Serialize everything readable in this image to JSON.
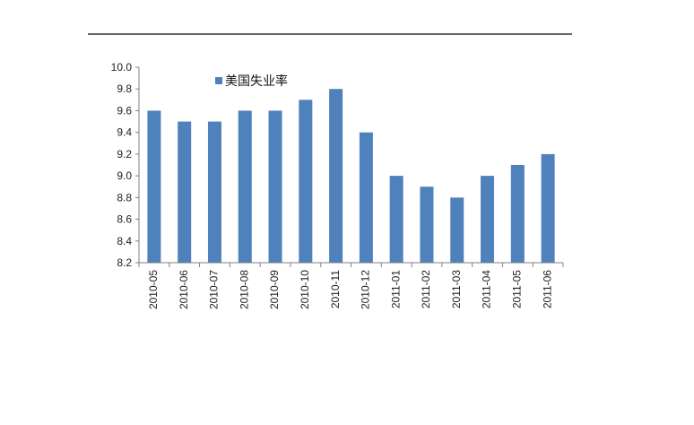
{
  "chart_data": {
    "type": "bar",
    "categories": [
      "2010-05",
      "2010-06",
      "2010-07",
      "2010-08",
      "2010-09",
      "2010-10",
      "2010-11",
      "2010-12",
      "2011-01",
      "2011-02",
      "2011-03",
      "2011-04",
      "2011-05",
      "2011-06"
    ],
    "series": [
      {
        "name": "美国失业率",
        "values": [
          9.6,
          9.5,
          9.5,
          9.6,
          9.6,
          9.7,
          9.8,
          9.4,
          9.0,
          8.9,
          8.8,
          9.0,
          9.1,
          9.2
        ]
      }
    ],
    "yticks": [
      "8.2",
      "8.4",
      "8.6",
      "8.8",
      "9.0",
      "9.2",
      "9.4",
      "9.6",
      "9.8",
      "10.0"
    ],
    "ylim": [
      8.2,
      10.0
    ],
    "grid": false,
    "legend_position": "top-left",
    "colors": {
      "bar": "#4f81bd",
      "axis": "#808080",
      "rule": "#333333"
    }
  }
}
